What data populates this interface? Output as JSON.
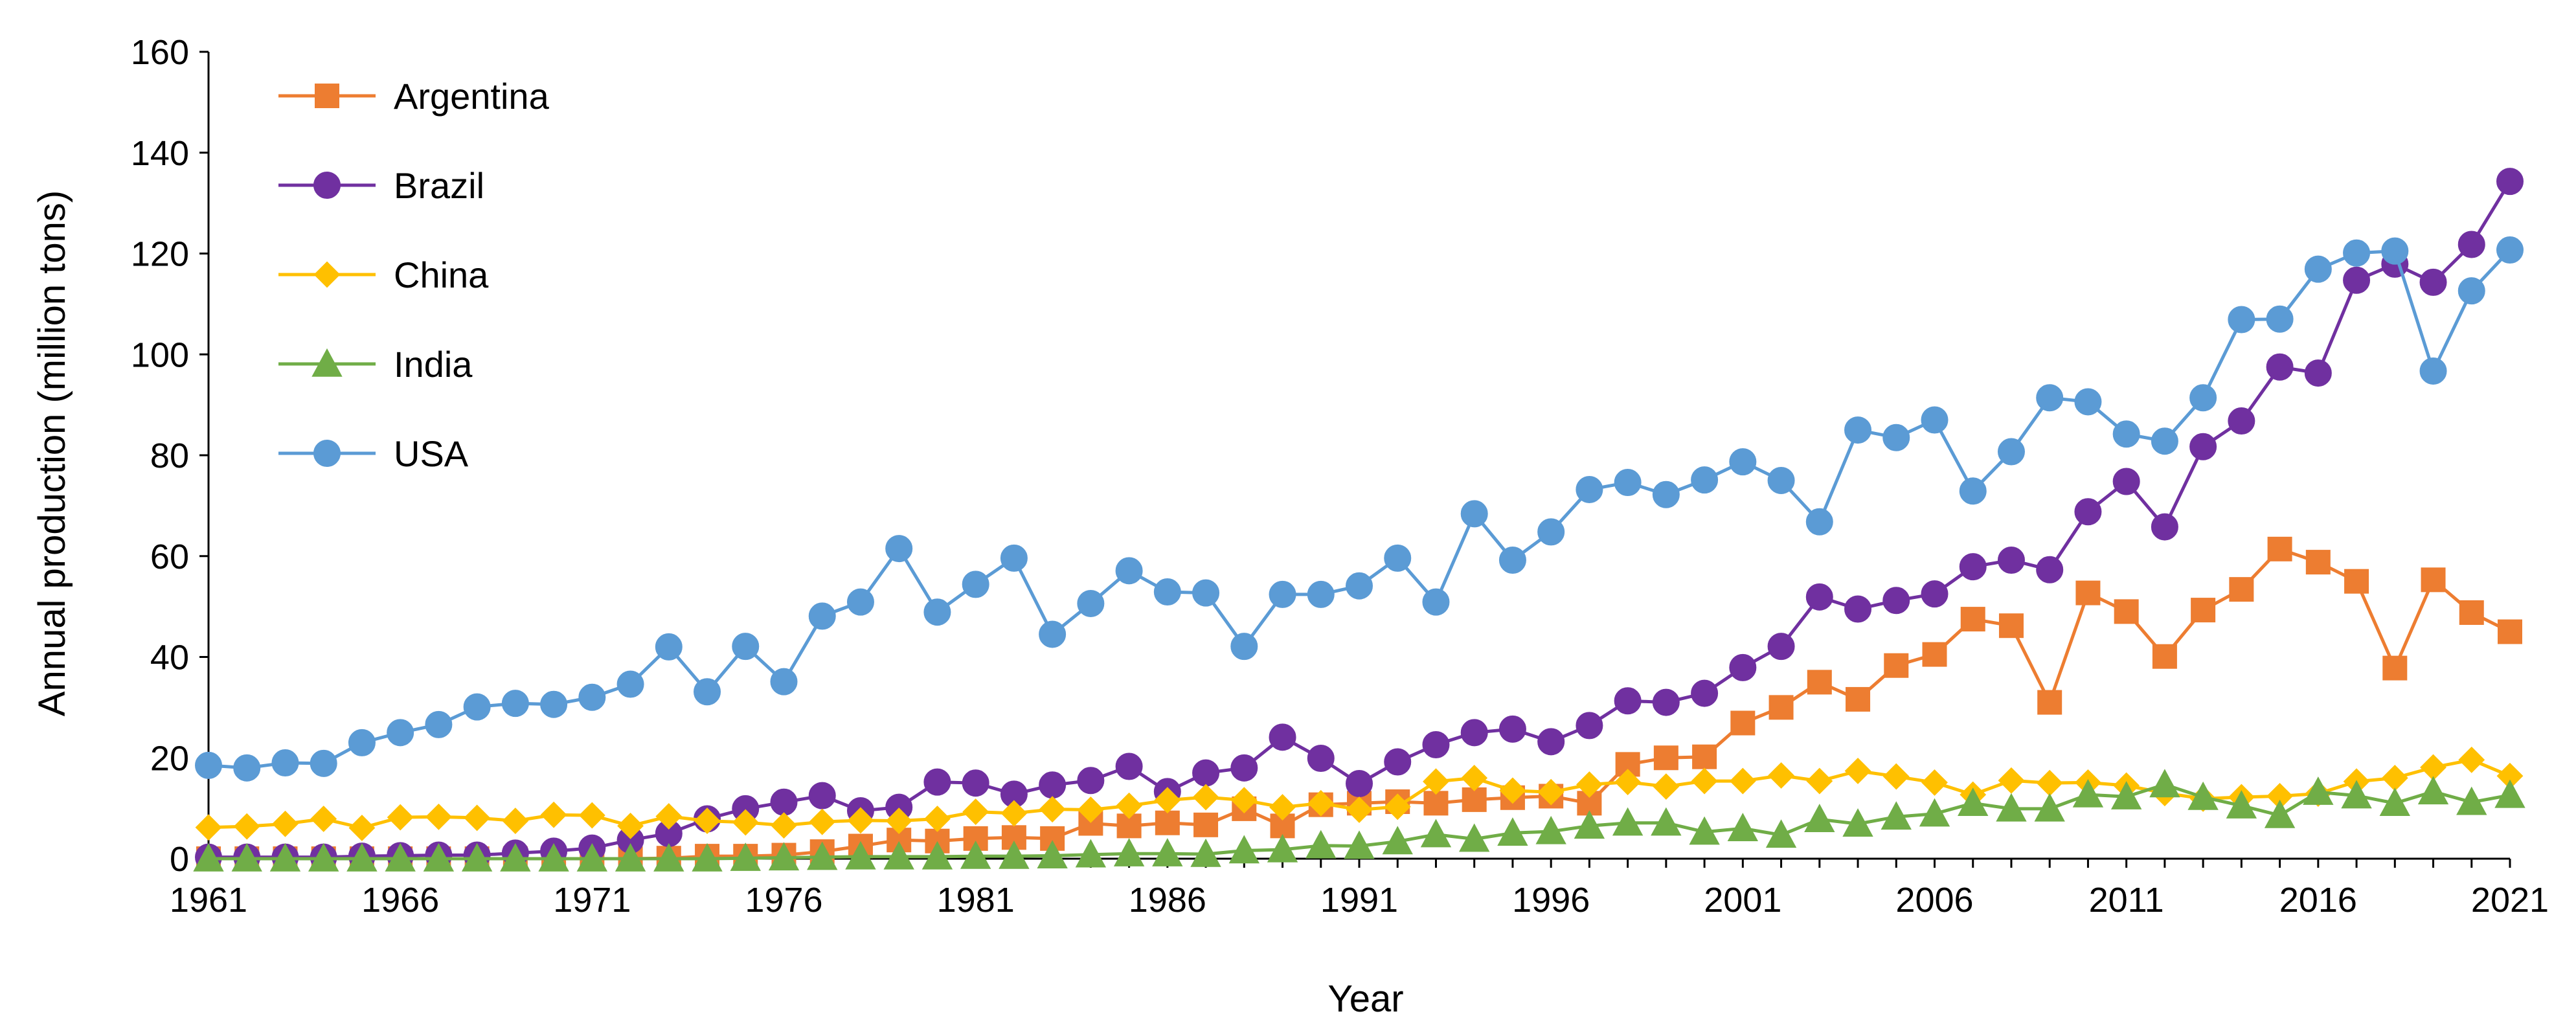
{
  "chart_data": {
    "type": "line",
    "title": "",
    "xlabel": "Year",
    "ylabel": "Annual production (million tons)",
    "xlim": [
      1961,
      2021
    ],
    "ylim": [
      0,
      160
    ],
    "x_ticks": [
      "1961",
      "1966",
      "1971",
      "1976",
      "1981",
      "1986",
      "1991",
      "1996",
      "2001",
      "2006",
      "2011",
      "2016",
      "2021"
    ],
    "y_ticks": [
      "0",
      "20",
      "40",
      "60",
      "80",
      "100",
      "120",
      "140",
      "160"
    ],
    "legend_position": "top-left",
    "grid": false,
    "years": [
      1961,
      1962,
      1963,
      1964,
      1965,
      1966,
      1967,
      1968,
      1969,
      1970,
      1971,
      1972,
      1973,
      1974,
      1975,
      1976,
      1977,
      1978,
      1979,
      1980,
      1981,
      1982,
      1983,
      1984,
      1985,
      1986,
      1987,
      1988,
      1989,
      1990,
      1991,
      1992,
      1993,
      1994,
      1995,
      1996,
      1997,
      1998,
      1999,
      2000,
      2001,
      2002,
      2003,
      2004,
      2005,
      2006,
      2007,
      2008,
      2009,
      2010,
      2011,
      2012,
      2013,
      2014,
      2015,
      2016,
      2017,
      2018,
      2019,
      2020,
      2021
    ],
    "series": [
      {
        "name": "Argentina",
        "color": "#ED7D31",
        "marker": "square",
        "values": [
          0,
          0,
          0,
          0,
          0,
          0,
          0,
          0,
          0,
          0,
          0,
          0,
          0.1,
          0.5,
          0.5,
          0.7,
          1.4,
          2.5,
          3.7,
          3.5,
          4.0,
          4.2,
          4.0,
          7.0,
          6.5,
          7.1,
          6.7,
          9.9,
          6.5,
          10.7,
          11.0,
          11.3,
          11.0,
          11.7,
          12.1,
          12.4,
          11.0,
          18.7,
          20.0,
          20.2,
          26.9,
          30.0,
          35.0,
          31.6,
          38.3,
          40.5,
          47.5,
          46.2,
          31.0,
          52.7,
          49.0,
          40.1,
          49.3,
          53.4,
          61.4,
          58.8,
          55.0,
          37.8,
          55.3,
          48.8,
          45.0
        ]
      },
      {
        "name": "Brazil",
        "color": "#7030A0",
        "marker": "circle",
        "values": [
          0.3,
          0.3,
          0.3,
          0.3,
          0.5,
          0.6,
          0.7,
          0.7,
          1.1,
          1.5,
          2.1,
          3.7,
          5.0,
          7.9,
          9.9,
          11.2,
          12.5,
          9.5,
          10.2,
          15.2,
          15.0,
          12.8,
          14.6,
          15.5,
          18.3,
          13.3,
          17.0,
          18.0,
          24.1,
          19.9,
          14.9,
          19.2,
          22.6,
          25.0,
          25.7,
          23.2,
          26.4,
          31.3,
          31.0,
          32.8,
          37.9,
          42.1,
          51.9,
          49.5,
          51.2,
          52.5,
          57.9,
          59.2,
          57.3,
          68.8,
          74.8,
          65.8,
          81.7,
          86.8,
          97.5,
          96.3,
          114.7,
          117.9,
          114.3,
          121.8,
          134.3
        ]
      },
      {
        "name": "China",
        "color": "#FFC000",
        "marker": "diamond",
        "values": [
          6.2,
          6.4,
          6.9,
          7.9,
          6.1,
          8.2,
          8.3,
          8.1,
          7.5,
          8.7,
          8.6,
          6.5,
          8.4,
          7.5,
          7.2,
          6.6,
          7.3,
          7.6,
          7.5,
          7.9,
          9.3,
          9.0,
          9.8,
          9.7,
          10.5,
          11.6,
          12.2,
          11.6,
          10.2,
          11.0,
          9.7,
          10.3,
          15.3,
          16.0,
          13.5,
          13.2,
          14.7,
          15.2,
          14.3,
          15.4,
          15.4,
          16.5,
          15.4,
          17.4,
          16.3,
          15.1,
          12.7,
          15.5,
          15.0,
          15.1,
          14.5,
          13.0,
          11.9,
          12.2,
          12.4,
          12.9,
          15.3,
          16.0,
          18.1,
          19.6,
          16.4
        ]
      },
      {
        "name": "India",
        "color": "#70AD47",
        "marker": "triangle",
        "values": [
          0,
          0,
          0,
          0,
          0,
          0,
          0,
          0,
          0,
          0,
          0,
          0,
          0,
          0,
          0.1,
          0.2,
          0.3,
          0.4,
          0.4,
          0.4,
          0.5,
          0.5,
          0.6,
          0.8,
          1.0,
          1.0,
          0.9,
          1.6,
          1.8,
          2.6,
          2.5,
          3.4,
          4.8,
          3.9,
          5.1,
          5.4,
          6.5,
          7.1,
          7.1,
          5.3,
          6.0,
          4.7,
          7.8,
          6.9,
          8.3,
          8.9,
          11.0,
          9.9,
          9.9,
          12.7,
          12.3,
          14.7,
          12.2,
          10.5,
          8.6,
          13.2,
          12.5,
          11.0,
          13.3,
          11.2,
          12.6
        ]
      },
      {
        "name": "USA",
        "color": "#5B9BD5",
        "marker": "circle",
        "values": [
          18.5,
          18.0,
          19.0,
          18.9,
          23.0,
          25.0,
          26.6,
          30.1,
          30.8,
          30.6,
          32.0,
          34.6,
          42.0,
          33.1,
          42.1,
          35.1,
          48.1,
          50.9,
          61.5,
          48.9,
          54.4,
          59.6,
          44.5,
          50.6,
          57.1,
          52.9,
          52.7,
          42.1,
          52.4,
          52.4,
          54.1,
          59.6,
          50.9,
          68.4,
          59.2,
          64.8,
          73.2,
          74.6,
          72.2,
          75.1,
          78.7,
          75.0,
          66.8,
          85.0,
          83.5,
          87.0,
          72.9,
          80.7,
          91.4,
          90.6,
          84.2,
          82.8,
          91.4,
          106.9,
          107.0,
          116.9,
          120.1,
          120.5,
          96.7,
          112.6,
          120.7
        ]
      }
    ]
  }
}
